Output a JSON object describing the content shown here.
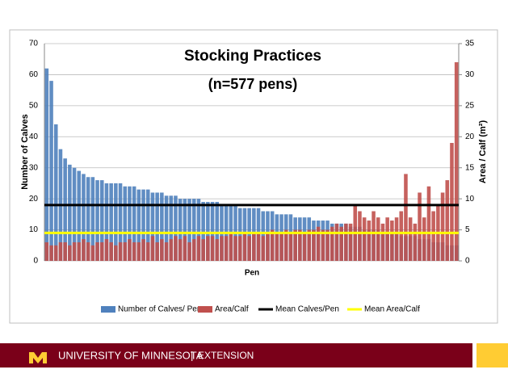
{
  "chart_data": {
    "type": "bar",
    "title": "Stocking Practices",
    "subtitle": "(n=577 pens)",
    "xlabel": "Pen",
    "ylabel": "Number of Calves",
    "y2label": "Area / Calf (m²)",
    "ylim": [
      0,
      70
    ],
    "yticks": [
      0,
      10,
      20,
      30,
      40,
      50,
      60,
      70
    ],
    "y2lim": [
      0,
      35
    ],
    "y2ticks": [
      0,
      5,
      10,
      15,
      20,
      25,
      30,
      35
    ],
    "grid": true,
    "legend": "bottom",
    "series": [
      {
        "name": "Number of Calves/ Pen",
        "color": "#4f81bd",
        "values": [
          62,
          58,
          44,
          36,
          33,
          31,
          30,
          29,
          28,
          27,
          27,
          26,
          26,
          25,
          25,
          25,
          25,
          24,
          24,
          24,
          23,
          23,
          23,
          22,
          22,
          22,
          21,
          21,
          21,
          20,
          20,
          20,
          20,
          20,
          19,
          19,
          19,
          19,
          18,
          18,
          18,
          18,
          17,
          17,
          17,
          17,
          17,
          16,
          16,
          16,
          15,
          15,
          15,
          15,
          14,
          14,
          14,
          14,
          13,
          13,
          13,
          13,
          12,
          12,
          12,
          12,
          11,
          11,
          11,
          10,
          10,
          10,
          10,
          9,
          9,
          9,
          9,
          8,
          8,
          8,
          8,
          7,
          7,
          7,
          6,
          6,
          6,
          5,
          5,
          5
        ]
      },
      {
        "name": "Area/Calf",
        "color": "#c0504d",
        "axis": "y2",
        "values": [
          3,
          2.5,
          2.5,
          3,
          3,
          2.5,
          3,
          3,
          3.5,
          3,
          2.5,
          3,
          3,
          3.5,
          3,
          2.5,
          3,
          3,
          3.5,
          3,
          3,
          3.5,
          3,
          4,
          3,
          3.5,
          3,
          3.5,
          4,
          3.5,
          4,
          3,
          3.5,
          4,
          3.5,
          4,
          4,
          3.5,
          4,
          4,
          4.5,
          4,
          4,
          4.5,
          4,
          4.5,
          4.5,
          4,
          4.5,
          5,
          4.5,
          4.5,
          5,
          4.5,
          5,
          5,
          4.5,
          5,
          5,
          5.5,
          5,
          5,
          5.5,
          6,
          5.5,
          6,
          6,
          9,
          8,
          7,
          6.5,
          8,
          7,
          6,
          7,
          6.5,
          7,
          8,
          14,
          7,
          6,
          11,
          7,
          12,
          8,
          9,
          11,
          13,
          19,
          32
        ]
      },
      {
        "name": "Mean Calves/Pen",
        "color": "#000000",
        "type": "line",
        "values": [
          18
        ]
      },
      {
        "name": "Mean Area/Calf",
        "color": "#ffff00",
        "type": "line",
        "axis": "y2",
        "values": [
          4.5
        ]
      }
    ]
  },
  "footer": {
    "university": "UNIVERSITY OF MINNESOTA",
    "unit": "EXTENSION"
  }
}
